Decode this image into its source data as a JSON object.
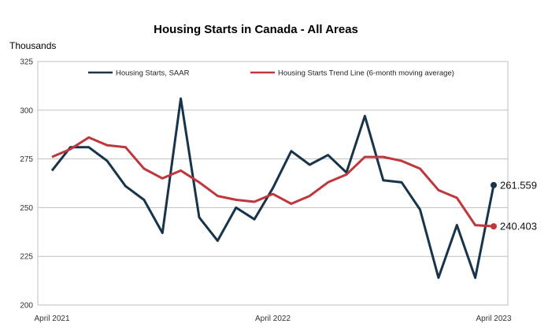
{
  "chart_data": {
    "type": "line",
    "title": "Housing Starts in Canada - All Areas",
    "ylabel": "Thousands",
    "xlabel": "",
    "ylim": [
      200,
      325
    ],
    "yticks": [
      200,
      225,
      250,
      275,
      300,
      325
    ],
    "x_tick_labels": [
      {
        "index": 0,
        "label": "April 2021"
      },
      {
        "index": 12,
        "label": "April 2022"
      },
      {
        "index": 24,
        "label": "April 2023"
      }
    ],
    "grid": "horizontal",
    "legend": "top-inside",
    "series": [
      {
        "name": "Housing Starts, SAAR",
        "color": "#17344a",
        "values": [
          269,
          281,
          281,
          274,
          261,
          254,
          237,
          306,
          245,
          233,
          250,
          244,
          260,
          279,
          272,
          277,
          268,
          297,
          264,
          263,
          249,
          214,
          241,
          214,
          261.559
        ],
        "end_label": "261.559"
      },
      {
        "name": "Housing Starts Trend Line (6-month moving average)",
        "color": "#c0363d",
        "values": [
          276,
          280,
          286,
          282,
          281,
          270,
          265,
          269,
          263,
          256,
          254,
          253,
          257,
          252,
          256,
          263,
          267,
          276,
          276,
          274,
          270,
          259,
          255,
          241,
          240.403
        ],
        "end_label": "240.403"
      }
    ]
  }
}
